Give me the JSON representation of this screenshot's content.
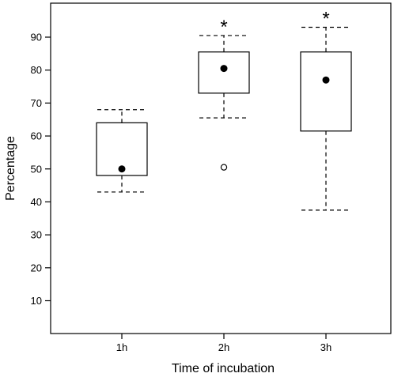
{
  "chart_data": {
    "type": "boxplot",
    "title": "",
    "xlabel": "Time of incubation",
    "ylabel": "Percentage",
    "ylim": [
      0,
      100
    ],
    "yticks": [
      10,
      20,
      30,
      40,
      50,
      60,
      70,
      80,
      90
    ],
    "grid": false,
    "categories": [
      "1h",
      "2h",
      "3h"
    ],
    "boxes": [
      {
        "category": "1h",
        "whisker_low": 43,
        "q1": 48,
        "median": 50,
        "q3": 64,
        "whisker_high": 68,
        "outliers": [],
        "significance": ""
      },
      {
        "category": "2h",
        "whisker_low": 65.5,
        "q1": 73,
        "median": 80.5,
        "q3": 85.5,
        "whisker_high": 90.5,
        "outliers": [
          50.5
        ],
        "significance": "*"
      },
      {
        "category": "3h",
        "whisker_low": 37.5,
        "q1": 61.5,
        "median": 77,
        "q3": 85.5,
        "whisker_high": 93,
        "outliers": [],
        "significance": "*"
      }
    ]
  }
}
